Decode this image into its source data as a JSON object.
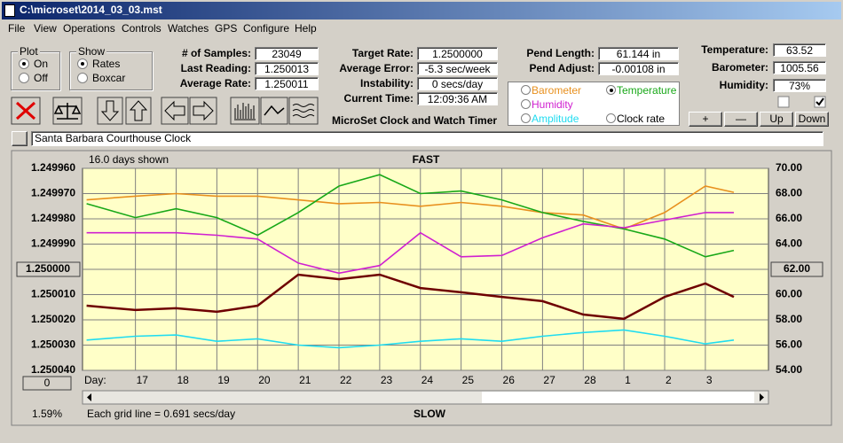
{
  "title_bar": {
    "title": "C:\\microset\\2014_03_03.mst"
  },
  "menu": [
    "File",
    "View",
    "Operations",
    "Controls",
    "Watches",
    "GPS",
    "Configure",
    "Help"
  ],
  "plot_group": {
    "label": "Plot",
    "options": [
      "On",
      "Off"
    ],
    "selected": 0
  },
  "show_group": {
    "label": "Show",
    "options": [
      "Rates",
      "Boxcar"
    ],
    "selected": 0
  },
  "stats": [
    {
      "label": "# of Samples:",
      "value": "23049"
    },
    {
      "label": "Last Reading:",
      "value": "1.250013"
    },
    {
      "label": "Average Rate:",
      "value": "1.250011"
    }
  ],
  "timing": [
    {
      "label": "Target Rate:",
      "value": "1.2500000"
    },
    {
      "label": "Average Error:",
      "value": "-5.3 sec/week"
    },
    {
      "label": "Instability:",
      "value": "0 secs/day"
    },
    {
      "label": "Current Time:",
      "value": "12:09:36 AM"
    }
  ],
  "app_name": "MicroSet Clock and Watch Timer",
  "pend": [
    {
      "label": "Pend Length:",
      "value": "61.144 in"
    },
    {
      "label": "Pend Adjust:",
      "value": "-0.00108 in"
    }
  ],
  "environment": [
    {
      "label": "Temperature:",
      "value": "63.52"
    },
    {
      "label": "Barometer:",
      "value": "1005.56"
    },
    {
      "label": "Humidity:",
      "value": "73%"
    }
  ],
  "env_buttons": [
    "+",
    "—",
    "Up",
    "Down"
  ],
  "clock_name": "Santa Barbara Courthouse Clock",
  "plot": {
    "days_shown": "16.0 days shown",
    "top_label": "FAST",
    "bottom_label": "SLOW",
    "x_label": "Day:",
    "grid_note": "Each grid line = 0.691 secs/day",
    "percent": "1.59%",
    "zero_button": "0",
    "selected_series": 1,
    "xlim": [
      -1.3,
      15.55
    ],
    "xticks": [
      {
        "value": 0,
        "label": "17"
      },
      {
        "value": 1,
        "label": "18"
      },
      {
        "value": 2,
        "label": "19"
      },
      {
        "value": 3,
        "label": "20"
      },
      {
        "value": 4,
        "label": "21"
      },
      {
        "value": 5,
        "label": "22"
      },
      {
        "value": 6,
        "label": "23"
      },
      {
        "value": 7,
        "label": "24"
      },
      {
        "value": 8,
        "label": "25"
      },
      {
        "value": 9,
        "label": "26"
      },
      {
        "value": 10,
        "label": "27"
      },
      {
        "value": 11,
        "label": "28"
      },
      {
        "value": 12,
        "label": "1"
      },
      {
        "value": 13,
        "label": "2"
      },
      {
        "value": 14,
        "label": "3"
      }
    ],
    "ylim": [
      1.25004,
      1.24996
    ],
    "yticks": [
      {
        "value": 1.24996,
        "label": "1.249960"
      },
      {
        "value": 1.24997,
        "label": "1.249970"
      },
      {
        "value": 1.24998,
        "label": "1.249980"
      },
      {
        "value": 1.24999,
        "label": "1.249990"
      },
      {
        "value": 1.25,
        "label": "1.250000",
        "style": "button"
      },
      {
        "value": 1.25001,
        "label": "1.250010"
      },
      {
        "value": 1.25002,
        "label": "1.250020"
      },
      {
        "value": 1.25003,
        "label": "1.250030"
      },
      {
        "value": 1.25004,
        "label": "1.250040"
      }
    ],
    "y2lim": [
      54,
      70
    ],
    "y2ticks": [
      {
        "value": 70,
        "label": "70.00"
      },
      {
        "value": 68,
        "label": "68.00"
      },
      {
        "value": 66,
        "label": "66.00"
      },
      {
        "value": 64,
        "label": "64.00"
      },
      {
        "value": 62,
        "label": "62.00",
        "style": "button"
      },
      {
        "value": 60,
        "label": "60.00"
      },
      {
        "value": 58,
        "label": "58.00"
      },
      {
        "value": 56,
        "label": "56.00"
      },
      {
        "value": 54,
        "label": "54.00"
      }
    ],
    "x": [
      -1.2,
      0,
      1,
      2,
      3,
      4,
      5,
      6,
      7,
      8,
      9,
      10,
      11,
      12,
      13,
      14,
      14.7
    ],
    "series": [
      {
        "name": "Barometer",
        "color": "#e8901e",
        "axis": "y2",
        "values": [
          67.5,
          67.8,
          68.0,
          67.8,
          67.8,
          67.5,
          67.2,
          67.3,
          67.0,
          67.3,
          67.0,
          66.5,
          66.3,
          65.2,
          66.5,
          68.6,
          68.1
        ]
      },
      {
        "name": "Temperature",
        "color": "#18a818",
        "axis": "y2",
        "values": [
          67.2,
          66.1,
          66.8,
          66.1,
          64.7,
          66.5,
          68.6,
          69.5,
          68.0,
          68.2,
          67.5,
          66.5,
          65.8,
          65.2,
          64.4,
          63.0,
          63.5
        ]
      },
      {
        "name": "Humidity",
        "color": "#d020d0",
        "axis": "y2",
        "values": [
          64.9,
          64.9,
          64.9,
          64.7,
          64.4,
          62.5,
          61.7,
          62.3,
          64.9,
          63.0,
          63.1,
          64.5,
          65.6,
          65.3,
          65.9,
          66.5,
          66.5
        ]
      },
      {
        "name": "Amplitude",
        "color": "#20dcf0",
        "axis": "y2",
        "values": [
          56.4,
          56.7,
          56.8,
          56.3,
          56.5,
          56.0,
          55.8,
          56.0,
          56.3,
          56.5,
          56.3,
          56.7,
          57.0,
          57.2,
          56.7,
          56.1,
          56.4
        ]
      },
      {
        "name": "Clock rate",
        "color": "#6e0000",
        "axis": "y",
        "values": [
          1.2500144,
          1.2500161,
          1.2500154,
          1.2500168,
          1.2500144,
          1.2500021,
          1.2500039,
          1.2500021,
          1.2500074,
          1.2500091,
          1.2500109,
          1.2500126,
          1.2500179,
          1.2500196,
          1.2500109,
          1.2500056,
          1.2500109
        ]
      }
    ]
  }
}
